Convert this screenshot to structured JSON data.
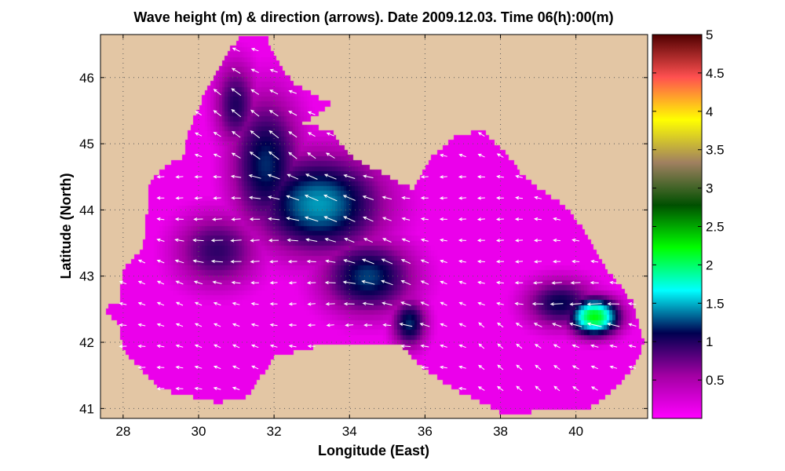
{
  "chart_data": {
    "type": "heatmap",
    "title": "Wave height (m) & direction (arrows). Date 2009.12.03. Time 06(h):00(m)",
    "xlabel": "Longitude (East)",
    "ylabel": "Latitude (North)",
    "xlim": [
      27.4,
      41.9
    ],
    "ylim": [
      40.85,
      46.65
    ],
    "x_ticks": [
      28,
      30,
      32,
      34,
      36,
      38,
      40
    ],
    "y_ticks": [
      41,
      42,
      43,
      44,
      45,
      46
    ],
    "grid": true,
    "land_color": "#e3c6a4",
    "colorbar": {
      "range": [
        0,
        5
      ],
      "ticks": [
        0.5,
        1,
        1.5,
        2,
        2.5,
        3,
        3.5,
        4,
        4.5,
        5
      ],
      "colors": [
        "#ff00ff",
        "#a300a3",
        "#000050",
        "#00ffff",
        "#00ff00",
        "#005000",
        "#a08060",
        "#ffff00",
        "#ff5050",
        "#500000"
      ]
    },
    "sea_outline": [
      [
        27.5,
        42.5
      ],
      [
        27.9,
        42.6
      ],
      [
        28.0,
        43.1
      ],
      [
        28.5,
        43.4
      ],
      [
        28.6,
        43.7
      ],
      [
        28.7,
        44.4
      ],
      [
        29.2,
        44.7
      ],
      [
        29.6,
        44.8
      ],
      [
        29.7,
        45.1
      ],
      [
        30.2,
        45.8
      ],
      [
        30.8,
        46.4
      ],
      [
        31.1,
        46.6
      ],
      [
        31.8,
        46.6
      ],
      [
        32.0,
        46.3
      ],
      [
        32.5,
        45.9
      ],
      [
        33.5,
        45.6
      ],
      [
        33.0,
        45.4
      ],
      [
        32.7,
        45.3
      ],
      [
        33.5,
        45.2
      ],
      [
        34.0,
        44.8
      ],
      [
        35.0,
        44.5
      ],
      [
        35.7,
        44.3
      ],
      [
        36.2,
        44.8
      ],
      [
        36.8,
        45.1
      ],
      [
        37.5,
        45.2
      ],
      [
        38.2,
        44.8
      ],
      [
        38.6,
        44.5
      ],
      [
        39.3,
        44.2
      ],
      [
        39.8,
        44.0
      ],
      [
        40.3,
        43.6
      ],
      [
        40.8,
        43.1
      ],
      [
        41.5,
        42.6
      ],
      [
        41.8,
        42.0
      ],
      [
        41.5,
        41.6
      ],
      [
        40.8,
        41.2
      ],
      [
        40.3,
        41.0
      ],
      [
        39.2,
        41.0
      ],
      [
        38.2,
        40.9
      ],
      [
        37.5,
        41.1
      ],
      [
        36.8,
        41.3
      ],
      [
        36.0,
        41.6
      ],
      [
        35.3,
        42.0
      ],
      [
        34.5,
        42.0
      ],
      [
        33.5,
        42.0
      ],
      [
        32.0,
        41.8
      ],
      [
        31.3,
        41.2
      ],
      [
        30.5,
        41.1
      ],
      [
        29.8,
        41.2
      ],
      [
        29.0,
        41.3
      ],
      [
        28.5,
        41.6
      ],
      [
        28.0,
        41.9
      ],
      [
        27.9,
        42.3
      ]
    ],
    "wave_height_field": [
      {
        "lon": 33.2,
        "lat": 44.1,
        "height": 1.45,
        "sx": 1.8,
        "sy": 0.8
      },
      {
        "lon": 31.8,
        "lat": 44.7,
        "height": 1.2,
        "sx": 1.0,
        "sy": 1.1
      },
      {
        "lon": 31.0,
        "lat": 45.6,
        "height": 1.0,
        "sx": 0.6,
        "sy": 0.7
      },
      {
        "lon": 34.5,
        "lat": 43.0,
        "height": 1.25,
        "sx": 1.3,
        "sy": 0.6
      },
      {
        "lon": 35.6,
        "lat": 42.3,
        "height": 1.2,
        "sx": 0.5,
        "sy": 0.4
      },
      {
        "lon": 30.5,
        "lat": 43.4,
        "height": 0.95,
        "sx": 1.2,
        "sy": 0.6
      },
      {
        "lon": 40.5,
        "lat": 42.4,
        "height": 2.2,
        "sx": 0.7,
        "sy": 0.3
      },
      {
        "lon": 39.6,
        "lat": 42.6,
        "height": 1.1,
        "sx": 1.0,
        "sy": 0.4
      }
    ],
    "wave_direction_field": {
      "description": "Arrows point predominantly west / north-west across the basin",
      "prevailing_direction_deg": 170
    }
  }
}
